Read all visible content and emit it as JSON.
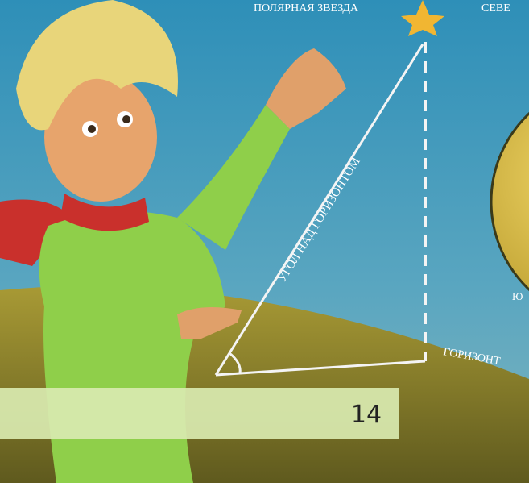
{
  "labels": {
    "polaris": "ПОЛЯРНАЯ ЗВЕЗДА",
    "north": "СЕВЕ",
    "angle": "УГОЛ НАД ГОРИЗОНТОМ",
    "south": "Ю",
    "horizon": "ГОРИЗОНТ"
  },
  "page_number": "14"
}
